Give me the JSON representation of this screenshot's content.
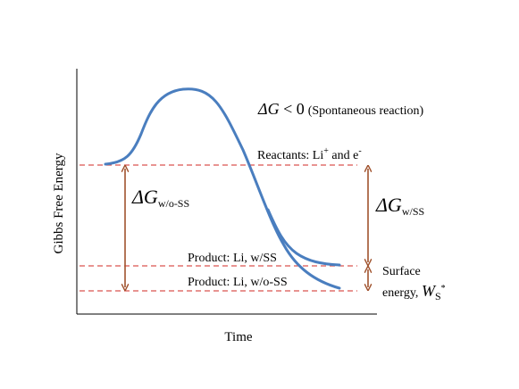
{
  "axes": {
    "y_label": "Gibbs Free Energy",
    "x_label": "Time"
  },
  "annotations": {
    "spontaneous": {
      "symbol": "ΔG",
      "relation": " < 0",
      "note": "(Spontaneous reaction)"
    },
    "reactants": {
      "text": "Reactants: Li",
      "sup1": "+",
      "mid": " and e",
      "sup2": "-"
    },
    "delta_wo_ss": {
      "symbol": "ΔG",
      "subscript": "w/o-SS"
    },
    "delta_w_ss": {
      "symbol": "ΔG",
      "subscript": "w/SS"
    },
    "product_w_ss": "Product: Li, w/SS",
    "product_wo_ss": "Product: Li, w/o-SS",
    "surface_energy": {
      "line1": "Surface",
      "line2": "energy, ",
      "symbol": "W",
      "subscript": "S",
      "superscript": "*"
    }
  },
  "colors": {
    "curve": "#4a7ebf",
    "dashed": "#d9534f",
    "arrow": "#a0522d",
    "axis": "#000000"
  }
}
